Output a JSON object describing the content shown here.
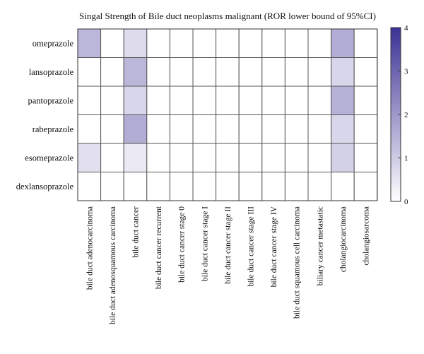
{
  "chart_data": {
    "type": "heatmap",
    "title": "Singal Strength of Bile duct neoplasms malignant (ROR lower bound of 95%CI)",
    "rows": [
      "omeprazole",
      "lansoprazole",
      "pantoprazole",
      "rabeprazole",
      "esomeprazole",
      "dexlansoprazole"
    ],
    "columns": [
      "bile duct adenocarcinoma",
      "bile duct adenosquamous carcinoma",
      "bile duct cancer",
      "bile duct cancer recurrent",
      "bile duct cancer stage 0",
      "bile duct cancer stage I",
      "bile duct cancer stage II",
      "bile duct cancer stage III",
      "bile duct cancer stage IV",
      "bile duct squamous cell carcinoma",
      "biliary cancer metastatic",
      "cholangiocarcinoma",
      "cholangiosarcoma"
    ],
    "values": [
      [
        1.4,
        0,
        0.7,
        0,
        0,
        0,
        0,
        0,
        0,
        0,
        0,
        1.6,
        0
      ],
      [
        0,
        0,
        1.4,
        0,
        0,
        0,
        0,
        0,
        0,
        0,
        0,
        0.8,
        0
      ],
      [
        0,
        0,
        0.8,
        0,
        0,
        0,
        0,
        0,
        0,
        0,
        0,
        1.5,
        0
      ],
      [
        0,
        0,
        1.6,
        0,
        0,
        0,
        0,
        0,
        0,
        0,
        0,
        0.8,
        0
      ],
      [
        0.6,
        0,
        0.4,
        0,
        0,
        0,
        0,
        0,
        0,
        0,
        0,
        0.9,
        0
      ],
      [
        0,
        0,
        0,
        0,
        0,
        0,
        0,
        0,
        0,
        0,
        0,
        0,
        0
      ]
    ],
    "colorbar": {
      "min": 0,
      "max": 4,
      "ticks": [
        "0",
        "1",
        "2",
        "3",
        "4"
      ],
      "color_low": "#ffffff",
      "color_high": "#3b3194"
    },
    "legend_position": "right"
  }
}
